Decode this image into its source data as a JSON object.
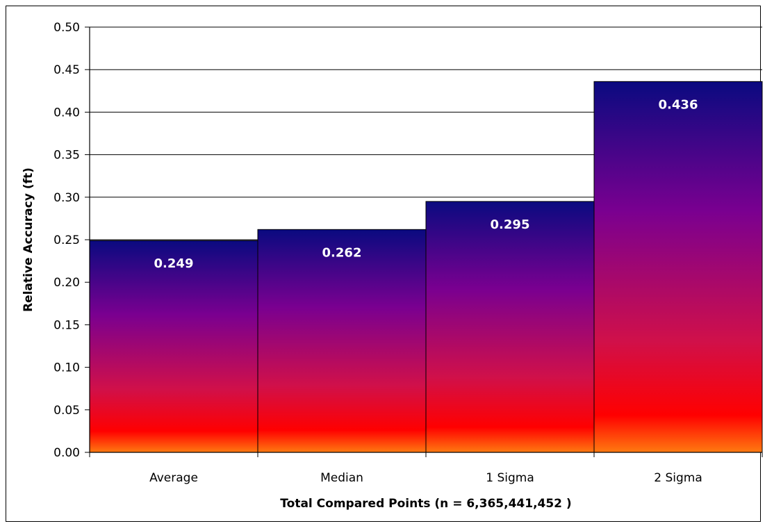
{
  "chart_data": {
    "type": "bar",
    "categories": [
      "Average",
      "Median",
      "1 Sigma",
      "2 Sigma"
    ],
    "values": [
      0.249,
      0.262,
      0.295,
      0.436
    ],
    "data_labels": [
      "0.249",
      "0.262",
      "0.295",
      "0.436"
    ],
    "title": "",
    "xlabel": "Total Compared Points (n = 6,365,441,452 )",
    "ylabel": "Relative Accuracy (ft)",
    "ylim": [
      0,
      0.5
    ],
    "ytick_labels": [
      "0.00",
      "0.05",
      "0.10",
      "0.15",
      "0.20",
      "0.25",
      "0.30",
      "0.35",
      "0.40",
      "0.45",
      "0.50"
    ],
    "grid": true,
    "legend": "none",
    "bar_gradient": [
      "#0a0a80",
      "#7a0090",
      "#d0104a",
      "#ff0000",
      "#ff7a10"
    ],
    "colors": {
      "grid": "#000000",
      "bar_border": "#000000",
      "label": "#ffffff"
    }
  }
}
